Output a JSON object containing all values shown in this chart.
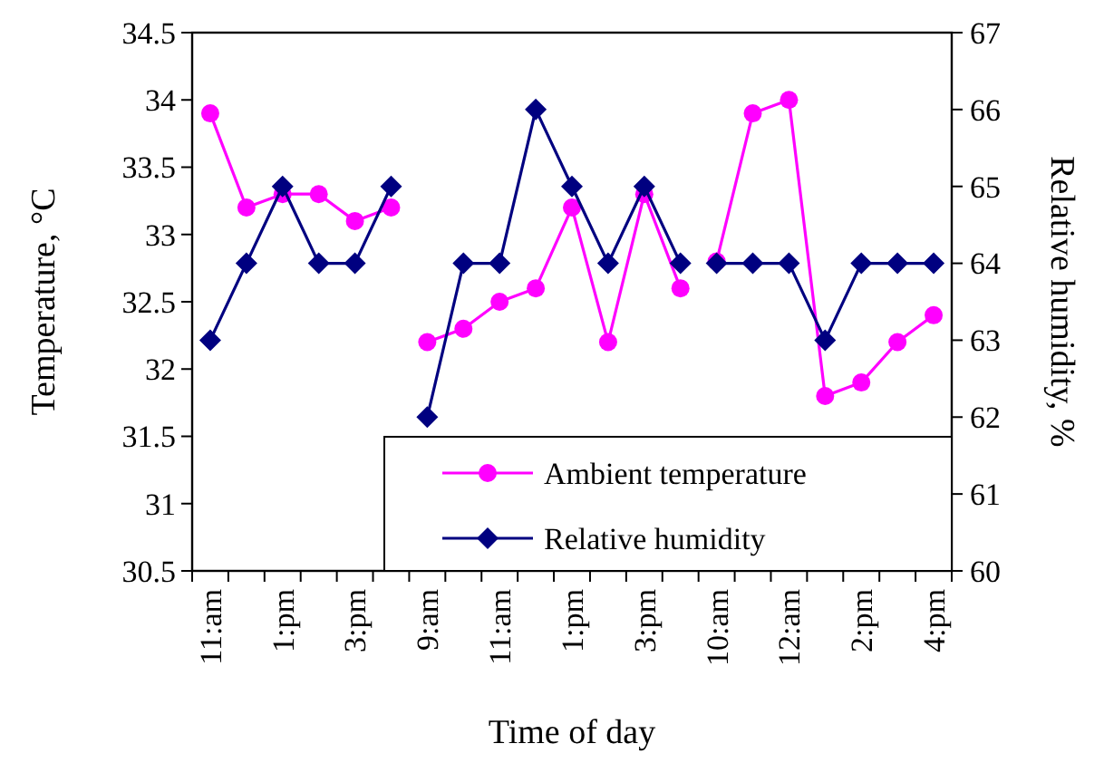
{
  "chart_data": {
    "type": "line",
    "xlabel": "Time of day",
    "ylabel": "Temperature, °C",
    "y2label": "Relative humidity, %",
    "categories": [
      "11:am",
      null,
      "1:pm",
      null,
      "3:pm",
      null,
      "9:am",
      null,
      "11:am",
      null,
      "1:pm",
      null,
      "3:pm",
      null,
      "10:am",
      null,
      "12:am",
      null,
      "2:pm",
      null,
      "4:pm"
    ],
    "series": [
      {
        "name": "Ambient temperature",
        "color": "#ff00ff",
        "marker": "circle",
        "values": [
          33.9,
          33.2,
          33.3,
          33.3,
          33.1,
          33.2,
          null,
          null,
          null,
          null,
          null,
          null,
          null,
          null,
          null,
          null,
          null,
          null,
          null,
          null,
          null
        ]
      },
      {
        "color": "#ff00ff",
        "marker": "circle",
        "values": [
          null,
          null,
          null,
          null,
          null,
          null,
          32.2,
          32.3,
          32.5,
          32.6,
          33.2,
          32.2,
          33.3,
          32.6,
          null,
          null,
          null,
          null,
          null,
          null,
          null
        ]
      },
      {
        "color": "#ff00ff",
        "marker": "circle",
        "values": [
          null,
          null,
          null,
          null,
          null,
          null,
          null,
          null,
          null,
          null,
          null,
          null,
          null,
          null,
          32.8,
          33.9,
          34.0,
          31.8,
          31.9,
          32.2,
          32.4
        ]
      },
      {
        "name": "Relative humidity",
        "color": "#000080",
        "marker": "diamond",
        "axis": "y2",
        "values": [
          63,
          64,
          65,
          64,
          64,
          65,
          null,
          null,
          null,
          null,
          null,
          null,
          null,
          null,
          null,
          null,
          null,
          null,
          null,
          null,
          null
        ]
      },
      {
        "color": "#000080",
        "marker": "diamond",
        "axis": "y2",
        "values": [
          null,
          null,
          null,
          null,
          null,
          null,
          62,
          64,
          64,
          66,
          65,
          64,
          65,
          64,
          null,
          null,
          null,
          null,
          null,
          null,
          null
        ]
      },
      {
        "color": "#000080",
        "marker": "diamond",
        "axis": "y2",
        "values": [
          null,
          null,
          null,
          null,
          null,
          null,
          null,
          null,
          null,
          null,
          null,
          null,
          null,
          null,
          64,
          64,
          64,
          63,
          64,
          64,
          64
        ]
      }
    ],
    "ylim": [
      30.5,
      34.5
    ],
    "yticks": [
      {
        "value": 30.5,
        "label": "30.5"
      },
      {
        "value": 31,
        "label": "31"
      },
      {
        "value": 31.5,
        "label": "31.5"
      },
      {
        "value": 32,
        "label": "32"
      },
      {
        "value": 32.5,
        "label": "32.5"
      },
      {
        "value": 33,
        "label": "33"
      },
      {
        "value": 33.5,
        "label": "33.5"
      },
      {
        "value": 34,
        "label": "34"
      },
      {
        "value": 34.5,
        "label": "34.5"
      }
    ],
    "y2lim": [
      60,
      67
    ],
    "y2ticks": [
      60,
      61,
      62,
      63,
      64,
      65,
      66,
      67
    ],
    "grid": false,
    "legend": "bottom right"
  }
}
